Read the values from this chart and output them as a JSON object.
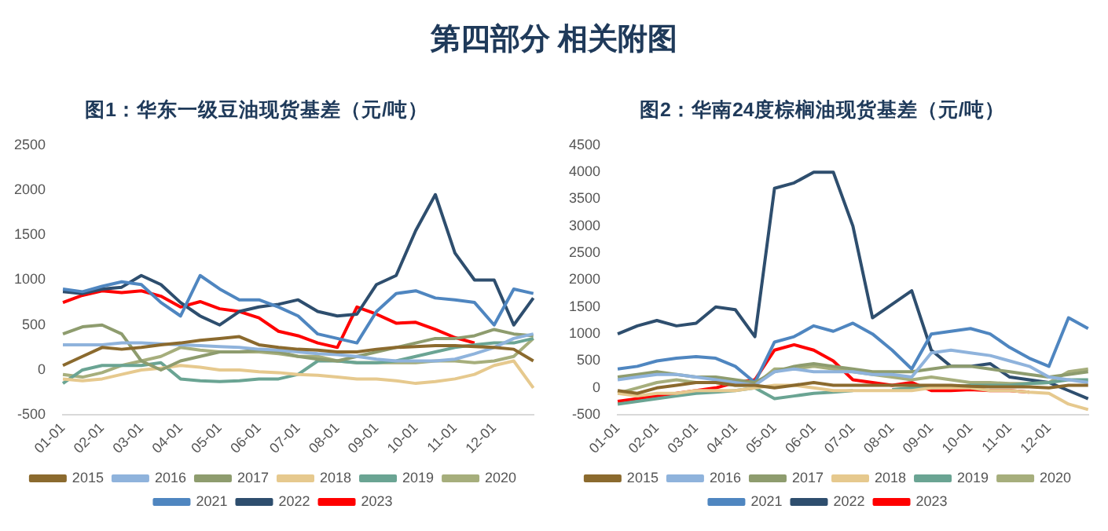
{
  "chart_data": [
    {
      "type": "line",
      "title": "图1：华东一级豆油现货基差（元/吨）",
      "annotations": [
        "第四部分  相关附图"
      ],
      "categories": [
        "01-01",
        null,
        "02-01",
        null,
        "03-01",
        null,
        "04-01",
        null,
        "05-01",
        null,
        "06-01",
        null,
        "07-01",
        null,
        "08-01",
        null,
        "09-01",
        null,
        "10-01",
        null,
        "11-01",
        null,
        "12-01",
        null,
        null
      ],
      "ylim": [
        -500,
        2500
      ],
      "yticks": [
        -500,
        0,
        500,
        1000,
        1500,
        2000,
        2500
      ],
      "grid": false,
      "legend": "bottom",
      "marker": "none",
      "line_style": "solid",
      "series": [
        {
          "name": "2015",
          "color": "#8b6a2e",
          "values": [
            50,
            150,
            250,
            230,
            250,
            280,
            300,
            330,
            350,
            370,
            280,
            250,
            230,
            220,
            200,
            200,
            230,
            250,
            260,
            270,
            270,
            260,
            250,
            230,
            100
          ]
        },
        {
          "name": "2016",
          "color": "#8fb3dc",
          "values": [
            280,
            280,
            280,
            300,
            300,
            290,
            280,
            270,
            260,
            250,
            230,
            220,
            200,
            180,
            170,
            150,
            120,
            100,
            100,
            100,
            120,
            180,
            250,
            350,
            400
          ]
        },
        {
          "name": "2017",
          "color": "#8e9c6e",
          "values": [
            400,
            480,
            500,
            400,
            100,
            0,
            100,
            150,
            200,
            200,
            220,
            200,
            150,
            120,
            100,
            150,
            200,
            250,
            300,
            350,
            350,
            380,
            450,
            400,
            380
          ]
        },
        {
          "name": "2018",
          "color": "#e6c98e",
          "values": [
            -100,
            -120,
            -100,
            -50,
            0,
            20,
            50,
            30,
            0,
            0,
            -20,
            -30,
            -50,
            -60,
            -80,
            -100,
            -100,
            -120,
            -150,
            -130,
            -100,
            -50,
            50,
            100,
            -200
          ]
        },
        {
          "name": "2019",
          "color": "#6aa493",
          "values": [
            -150,
            0,
            50,
            50,
            50,
            80,
            -100,
            -120,
            -130,
            -120,
            -100,
            -100,
            -50,
            100,
            100,
            80,
            80,
            100,
            150,
            200,
            250,
            280,
            300,
            300,
            350
          ]
        },
        {
          "name": "2020",
          "color": "#a6ae7c",
          "values": [
            -50,
            -80,
            -30,
            50,
            100,
            150,
            250,
            220,
            200,
            200,
            200,
            180,
            150,
            150,
            100,
            80,
            80,
            80,
            80,
            100,
            100,
            80,
            100,
            150,
            350
          ]
        },
        {
          "name": "2021",
          "color": "#4f86c0",
          "values": [
            900,
            870,
            930,
            980,
            950,
            750,
            600,
            1050,
            900,
            780,
            780,
            700,
            600,
            400,
            350,
            300,
            650,
            850,
            880,
            800,
            780,
            750,
            500,
            900,
            850
          ]
        },
        {
          "name": "2022",
          "color": "#2e4e6e",
          "values": [
            870,
            850,
            900,
            920,
            1050,
            950,
            750,
            600,
            500,
            650,
            700,
            730,
            780,
            650,
            600,
            620,
            950,
            1050,
            1550,
            1950,
            1300,
            1000,
            1000,
            500,
            800
          ]
        },
        {
          "name": "2023",
          "color": "#ff0000",
          "values": [
            750,
            830,
            880,
            860,
            880,
            820,
            700,
            760,
            680,
            650,
            580,
            430,
            380,
            300,
            250,
            700,
            620,
            520,
            530,
            450,
            360,
            300,
            null,
            null,
            null
          ]
        }
      ]
    },
    {
      "type": "line",
      "title": "图2：华南24度棕榈油现货基差（元/吨）",
      "categories": [
        "01-01",
        null,
        "02-01",
        null,
        "03-01",
        null,
        "04-01",
        null,
        "05-01",
        null,
        "06-01",
        null,
        "07-01",
        null,
        "08-01",
        null,
        "09-01",
        null,
        "10-01",
        null,
        "11-01",
        null,
        "12-01",
        null,
        null
      ],
      "ylim": [
        -500,
        4500
      ],
      "yticks": [
        -500,
        0,
        500,
        1000,
        1500,
        2000,
        2500,
        3000,
        3500,
        4000,
        4500
      ],
      "grid": false,
      "legend": "bottom",
      "marker": "none",
      "line_style": "solid",
      "series": [
        {
          "name": "2015",
          "color": "#8b6a2e",
          "values": [
            -50,
            -100,
            0,
            50,
            100,
            100,
            50,
            50,
            0,
            50,
            100,
            50,
            50,
            50,
            50,
            50,
            50,
            50,
            30,
            20,
            20,
            20,
            0,
            50,
            50
          ]
        },
        {
          "name": "2016",
          "color": "#8fb3dc",
          "values": [
            150,
            200,
            250,
            250,
            200,
            150,
            100,
            50,
            300,
            350,
            300,
            300,
            300,
            250,
            250,
            200,
            650,
            700,
            650,
            600,
            500,
            400,
            200,
            150,
            100
          ]
        },
        {
          "name": "2017",
          "color": "#8e9c6e",
          "values": [
            200,
            250,
            300,
            250,
            200,
            200,
            150,
            100,
            300,
            400,
            450,
            400,
            350,
            300,
            300,
            300,
            350,
            400,
            400,
            350,
            300,
            250,
            200,
            250,
            300
          ]
        },
        {
          "name": "2018",
          "color": "#e6c98e",
          "values": [
            -100,
            -150,
            -100,
            -100,
            -50,
            -50,
            -50,
            0,
            50,
            50,
            0,
            -50,
            -50,
            -50,
            -50,
            -50,
            0,
            0,
            0,
            -50,
            -50,
            -80,
            -100,
            -300,
            -400
          ]
        },
        {
          "name": "2019",
          "color": "#6aa493",
          "values": [
            -300,
            -250,
            -200,
            -150,
            -100,
            -80,
            -50,
            0,
            -200,
            -150,
            -100,
            -80,
            -50,
            null,
            -30,
            0,
            0,
            20,
            50,
            50,
            50,
            80,
            100,
            150,
            150
          ]
        },
        {
          "name": "2020",
          "color": "#a6ae7c",
          "values": [
            -100,
            0,
            100,
            150,
            100,
            100,
            50,
            50,
            350,
            350,
            400,
            350,
            300,
            250,
            200,
            150,
            200,
            150,
            100,
            100,
            80,
            80,
            100,
            300,
            350
          ]
        },
        {
          "name": "2021",
          "color": "#4f86c0",
          "values": [
            350,
            400,
            500,
            550,
            580,
            550,
            400,
            100,
            850,
            950,
            1150,
            1050,
            1200,
            1000,
            700,
            350,
            1000,
            1050,
            1100,
            1000,
            750,
            550,
            400,
            1300,
            1100
          ]
        },
        {
          "name": "2022",
          "color": "#2e4e6e",
          "values": [
            1000,
            1150,
            1250,
            1150,
            1200,
            1500,
            1450,
            950,
            3700,
            3800,
            4000,
            4000,
            3000,
            1300,
            1550,
            1800,
            700,
            400,
            400,
            450,
            200,
            150,
            100,
            -50,
            -200
          ]
        },
        {
          "name": "2023",
          "color": "#ff0000",
          "values": [
            -250,
            -200,
            -150,
            -100,
            -50,
            0,
            100,
            150,
            700,
            800,
            700,
            500,
            150,
            100,
            50,
            100,
            -50,
            -50,
            -30,
            -50,
            -50,
            -80,
            null,
            null,
            null
          ]
        }
      ]
    }
  ]
}
